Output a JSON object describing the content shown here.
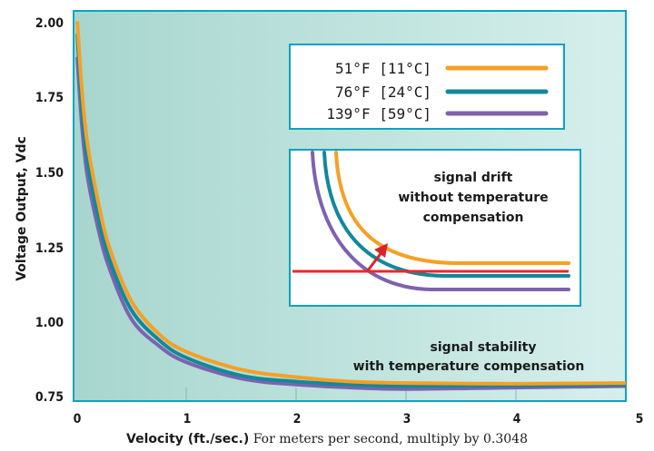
{
  "chart_data": {
    "type": "line",
    "ylabel": "Voltage Output, Vdc",
    "xlabel": "Velocity (ft./sec.)",
    "xlabel_note": "For meters per second, multiply by 0.3048",
    "xlim": [
      0,
      5
    ],
    "ylim": [
      0.73,
      2.03
    ],
    "x_ticks": [
      "0",
      "1",
      "2",
      "3",
      "4",
      "5"
    ],
    "y_ticks": [
      "0.75",
      "1.00",
      "1.25",
      "1.50",
      "1.75",
      "2.00"
    ],
    "colors": {
      "background": "#c9e8e4",
      "border": "#0aa3c2",
      "arrow": "#d8232a",
      "reference_line": "#e8282e"
    },
    "series": [
      {
        "name": "51°F [11°C]",
        "color": "#f5a025",
        "points": [
          [
            0.01,
            2.0
          ],
          [
            0.05,
            1.78
          ],
          [
            0.1,
            1.6
          ],
          [
            0.2,
            1.4
          ],
          [
            0.3,
            1.25
          ],
          [
            0.5,
            1.07
          ],
          [
            0.75,
            0.96
          ],
          [
            1.0,
            0.9
          ],
          [
            1.5,
            0.84
          ],
          [
            2.0,
            0.815
          ],
          [
            2.5,
            0.8
          ],
          [
            3.0,
            0.795
          ],
          [
            4.0,
            0.793
          ],
          [
            5.0,
            0.795
          ]
        ]
      },
      {
        "name": "76°F [24°C]",
        "color": "#12889a",
        "points": [
          [
            0.01,
            1.96
          ],
          [
            0.05,
            1.72
          ],
          [
            0.1,
            1.54
          ],
          [
            0.2,
            1.35
          ],
          [
            0.3,
            1.21
          ],
          [
            0.5,
            1.04
          ],
          [
            0.75,
            0.94
          ],
          [
            1.0,
            0.88
          ],
          [
            1.5,
            0.82
          ],
          [
            2.0,
            0.8
          ],
          [
            2.5,
            0.79
          ],
          [
            3.0,
            0.785
          ],
          [
            4.0,
            0.787
          ],
          [
            5.0,
            0.79
          ]
        ]
      },
      {
        "name": "139°F [59°C]",
        "color": "#7e62b0",
        "points": [
          [
            0.01,
            1.88
          ],
          [
            0.05,
            1.66
          ],
          [
            0.1,
            1.49
          ],
          [
            0.2,
            1.31
          ],
          [
            0.3,
            1.18
          ],
          [
            0.5,
            1.01
          ],
          [
            0.75,
            0.92
          ],
          [
            1.0,
            0.865
          ],
          [
            1.5,
            0.81
          ],
          [
            2.0,
            0.79
          ],
          [
            2.5,
            0.78
          ],
          [
            3.0,
            0.775
          ],
          [
            4.0,
            0.78
          ],
          [
            5.0,
            0.785
          ]
        ]
      }
    ],
    "annotations": {
      "stability": [
        "signal stability",
        "with temperature compensation"
      ],
      "drift": [
        "signal drift",
        "without temperature",
        "compensation"
      ]
    }
  }
}
